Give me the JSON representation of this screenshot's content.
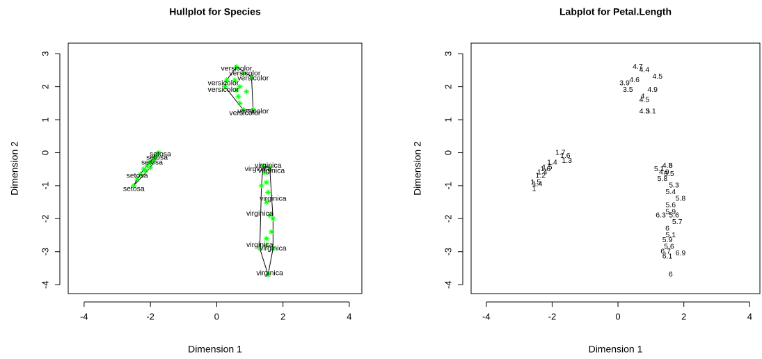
{
  "chart_data": [
    {
      "type": "hull",
      "title": "Hullplot for Species",
      "xlabel": "Dimension 1",
      "ylabel": "Dimension 2",
      "xlim": [
        -4.48,
        4.38
      ],
      "ylim": [
        -4.27,
        3.32
      ],
      "xticks": [
        -4,
        -2,
        0,
        2,
        4
      ],
      "yticks": [
        -4,
        -3,
        -2,
        -1,
        0,
        1,
        2,
        3
      ],
      "series": [
        {
          "name": "setosa",
          "color": "#00ff00",
          "x": [
            -2.5,
            -2.4,
            -2.3,
            -2.2,
            -2.1,
            -2.0,
            -1.9,
            -1.8,
            -1.75,
            -1.85,
            -2.15,
            -2.0
          ],
          "y": [
            -1.0,
            -0.8,
            -0.65,
            -0.5,
            -0.4,
            -0.3,
            -0.2,
            -0.05,
            0.0,
            -0.15,
            -0.55,
            -0.45
          ],
          "point_labels": [
            {
              "x": -1.7,
              "y": -0.05,
              "text": "setosa"
            },
            {
              "x": -1.8,
              "y": -0.15,
              "text": "setosa"
            },
            {
              "x": -1.95,
              "y": -0.3,
              "text": "setosa"
            },
            {
              "x": -2.4,
              "y": -0.7,
              "text": "setosa"
            },
            {
              "x": -2.5,
              "y": -1.1,
              "text": "setosa"
            }
          ]
        },
        {
          "name": "versicolor",
          "color": "#00ff00",
          "x": [
            0.6,
            0.8,
            0.3,
            0.25,
            0.6,
            0.9,
            0.65,
            0.7,
            0.8,
            1.1,
            1.05,
            0.55,
            0.7
          ],
          "y": [
            2.6,
            2.4,
            2.2,
            2.0,
            1.9,
            1.85,
            1.7,
            1.5,
            1.3,
            1.3,
            2.3,
            2.2,
            2.0
          ],
          "point_labels": [
            {
              "x": 0.6,
              "y": 2.55,
              "text": "versicolor"
            },
            {
              "x": 0.85,
              "y": 2.4,
              "text": "versicolor"
            },
            {
              "x": 1.1,
              "y": 2.25,
              "text": "versicolor"
            },
            {
              "x": 0.2,
              "y": 2.1,
              "text": "versicolor"
            },
            {
              "x": 0.2,
              "y": 1.9,
              "text": "versicolor"
            },
            {
              "x": 1.1,
              "y": 1.25,
              "text": "versicolor"
            },
            {
              "x": 0.85,
              "y": 1.2,
              "text": "versicolor"
            }
          ]
        },
        {
          "name": "virginica",
          "color": "#00ff00",
          "x": [
            1.4,
            1.6,
            1.45,
            1.5,
            1.55,
            1.5,
            1.6,
            1.7,
            1.65,
            1.5,
            1.5,
            1.7,
            1.55,
            1.35,
            1.3
          ],
          "y": [
            -0.4,
            -0.45,
            -0.6,
            -0.9,
            -1.2,
            -1.5,
            -1.9,
            -2.0,
            -2.4,
            -2.6,
            -2.8,
            -2.9,
            -3.7,
            -1.0,
            -2.9
          ],
          "point_labels": [
            {
              "x": 1.55,
              "y": -0.4,
              "text": "virginica"
            },
            {
              "x": 1.25,
              "y": -0.5,
              "text": "virginica"
            },
            {
              "x": 1.65,
              "y": -0.55,
              "text": "virginica"
            },
            {
              "x": 1.7,
              "y": -1.4,
              "text": "virginica"
            },
            {
              "x": 1.3,
              "y": -1.85,
              "text": "virginica"
            },
            {
              "x": 1.3,
              "y": -2.8,
              "text": "virginica"
            },
            {
              "x": 1.7,
              "y": -2.9,
              "text": "virginica"
            },
            {
              "x": 1.6,
              "y": -3.65,
              "text": "virginica"
            }
          ]
        }
      ]
    },
    {
      "type": "labels",
      "title": "Labplot for Petal.Length",
      "xlabel": "Dimension 1",
      "ylabel": "Dimension 2",
      "xlim": [
        -4.46,
        4.31
      ],
      "ylim": [
        -4.27,
        3.32
      ],
      "xticks": [
        -4,
        -2,
        0,
        2,
        4
      ],
      "yticks": [
        -4,
        -3,
        -2,
        -1,
        0,
        1,
        2,
        3
      ],
      "x": [
        -1.75,
        -1.6,
        -1.55,
        -2.0,
        -2.15,
        -2.3,
        -2.35,
        -2.5,
        -2.45,
        -2.55,
        -2.2,
        0.6,
        0.8,
        1.2,
        0.2,
        0.3,
        1.05,
        0.8,
        0.75,
        0.5,
        0.8,
        1.0,
        1.5,
        1.6,
        1.25,
        1.4,
        1.55,
        1.35,
        1.7,
        1.6,
        1.9,
        1.6,
        1.6,
        1.3,
        1.7,
        1.8,
        1.5,
        1.6,
        1.5,
        1.55,
        1.45,
        1.9,
        1.5,
        1.6
      ],
      "y": [
        0.0,
        -0.1,
        -0.25,
        -0.3,
        -0.45,
        -0.6,
        -0.7,
        -0.9,
        -0.95,
        -1.1,
        -0.5,
        2.6,
        2.5,
        2.3,
        2.1,
        1.9,
        1.9,
        1.6,
        1.7,
        2.2,
        1.25,
        1.25,
        -0.4,
        -0.4,
        -0.5,
        -0.6,
        -0.65,
        -0.8,
        -1.0,
        -1.2,
        -1.4,
        -1.6,
        -1.8,
        -1.9,
        -1.9,
        -2.1,
        -2.3,
        -2.5,
        -2.65,
        -2.85,
        -3.0,
        -3.05,
        -3.15,
        -3.7
      ],
      "labels": [
        "1.7",
        "1.6",
        "1.3",
        "1.4",
        "1.5",
        "1.4",
        "1.2",
        "1.5",
        "1.4",
        "1",
        "1.6",
        "4.7",
        "4.4",
        "4.5",
        "3.9",
        "3.5",
        "4.9",
        "4.5",
        "4",
        "4.6",
        "4.3",
        "5.1",
        "4.8",
        "5",
        "5.1",
        "4.9",
        "5.5",
        "5.8",
        "5.3",
        "5.4",
        "5.8",
        "5.6",
        "5.9",
        "6.3",
        "5.6",
        "5.7",
        "6",
        "5.1",
        "5.9",
        "5.6",
        "6.7",
        "6.9",
        "6.1",
        "6"
      ]
    }
  ]
}
